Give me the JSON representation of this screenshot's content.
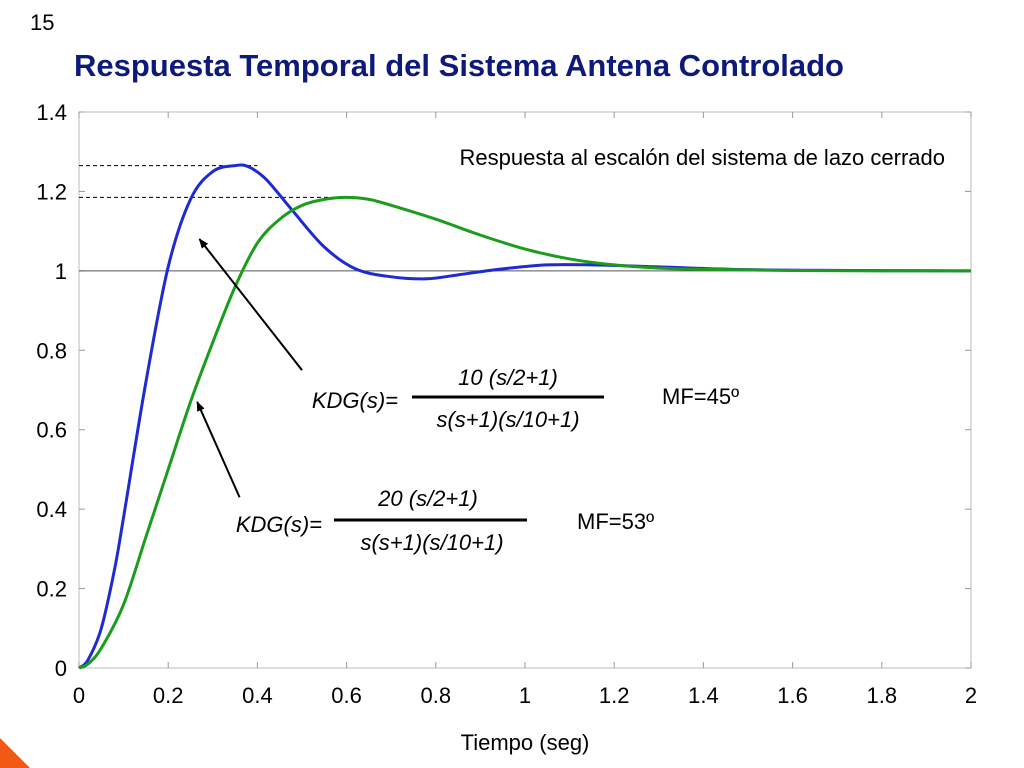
{
  "slide": {
    "number": "15",
    "title": "Respuesta Temporal del Sistema Antena Controlado"
  },
  "colors": {
    "title": "#0d1a7a",
    "series_blue": "#1f2ad0",
    "series_green": "#1c9c1c",
    "accent": "#f05a14"
  },
  "chart_data": {
    "type": "line",
    "title": "Respuesta al escalón del sistema de lazo cerrado",
    "xlabel": "Tiempo (seg)",
    "ylabel": "",
    "xlim": [
      0,
      2
    ],
    "ylim": [
      0,
      1.4
    ],
    "grid": false,
    "x_ticks": [
      "0",
      "0.2",
      "0.4",
      "0.6",
      "0.8",
      "1",
      "1.2",
      "1.4",
      "1.6",
      "1.8",
      "2"
    ],
    "y_ticks": [
      "0",
      "0.2",
      "0.4",
      "0.6",
      "0.8",
      "1",
      "1.2",
      "1.4"
    ],
    "series": [
      {
        "color": "#1f2ad0",
        "x": [
          0,
          0.02,
          0.05,
          0.08,
          0.1,
          0.15,
          0.2,
          0.25,
          0.3,
          0.35,
          0.38,
          0.42,
          0.48,
          0.55,
          0.62,
          0.7,
          0.78,
          0.85,
          0.95,
          1.05,
          1.15,
          1.3,
          1.5,
          1.75,
          2.0
        ],
        "values": [
          0,
          0.02,
          0.1,
          0.25,
          0.38,
          0.72,
          1.01,
          1.18,
          1.25,
          1.265,
          1.262,
          1.23,
          1.15,
          1.06,
          1.005,
          0.985,
          0.98,
          0.99,
          1.005,
          1.015,
          1.015,
          1.01,
          1.003,
          1.001,
          1.0
        ]
      },
      {
        "color": "#1c9c1c",
        "x": [
          0,
          0.02,
          0.05,
          0.1,
          0.15,
          0.2,
          0.25,
          0.3,
          0.35,
          0.4,
          0.45,
          0.5,
          0.55,
          0.6,
          0.65,
          0.7,
          0.8,
          0.9,
          1.0,
          1.1,
          1.2,
          1.3,
          1.4,
          1.6,
          1.8,
          2.0
        ],
        "values": [
          0,
          0.01,
          0.05,
          0.16,
          0.33,
          0.5,
          0.67,
          0.82,
          0.96,
          1.07,
          1.13,
          1.165,
          1.18,
          1.185,
          1.18,
          1.165,
          1.13,
          1.09,
          1.055,
          1.03,
          1.015,
          1.007,
          1.004,
          1.001,
          1.0,
          1.0
        ]
      }
    ],
    "reference_lines": [
      {
        "y": 1.0,
        "style": "solid",
        "color": "#555555"
      },
      {
        "y": 1.265,
        "style": "dashed",
        "color": "#000000",
        "x_end": 0.4
      },
      {
        "y": 1.185,
        "style": "dashed",
        "color": "#000000",
        "x_end": 0.6
      }
    ],
    "annotations": [
      {
        "label": "KDG(s)=",
        "numerator": "10 (s/2+1)",
        "denominator": "s(s+1)(s/10+1)",
        "margin": "MF=45º",
        "arrow_from": [
          0.5,
          0.75
        ],
        "arrow_to": [
          0.27,
          1.08
        ]
      },
      {
        "label": "KDG(s)=",
        "numerator": "20 (s/2+1)",
        "denominator": "s(s+1)(s/10+1)",
        "margin": "MF=53º",
        "arrow_from": [
          0.36,
          0.43
        ],
        "arrow_to": [
          0.265,
          0.67
        ]
      }
    ]
  }
}
